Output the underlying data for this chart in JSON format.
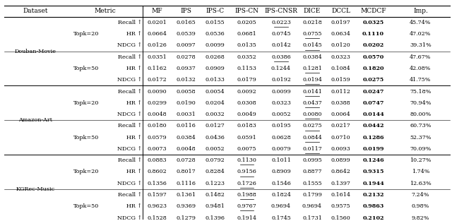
{
  "rows": [
    [
      "Douban-Movie",
      "Topk=20",
      "Recall ↑",
      "0.0201",
      "0.0165",
      "0.0155",
      "0.0205",
      "0.0223",
      "0.0218",
      "0.0197",
      "0.0325",
      "45.74%"
    ],
    [
      "",
      "Topk=20",
      "HR ↑",
      "0.0664",
      "0.0539",
      "0.0536",
      "0.0681",
      "0.0745",
      "0.0755",
      "0.0634",
      "0.1110",
      "47.02%"
    ],
    [
      "",
      "Topk=20",
      "NDCG ↑",
      "0.0126",
      "0.0097",
      "0.0099",
      "0.0135",
      "0.0142",
      "0.0145",
      "0.0120",
      "0.0202",
      "39.31%"
    ],
    [
      "",
      "Topk=50",
      "Recall ↑",
      "0.0351",
      "0.0278",
      "0.0268",
      "0.0352",
      "0.0386",
      "0.0384",
      "0.0323",
      "0.0570",
      "47.67%"
    ],
    [
      "",
      "Topk=50",
      "HR ↑",
      "0.1162",
      "0.0937",
      "0.0909",
      "0.1153",
      "0.1244",
      "0.1281",
      "0.1084",
      "0.1820",
      "42.08%"
    ],
    [
      "",
      "Topk=50",
      "NDCG ↑",
      "0.0172",
      "0.0132",
      "0.0133",
      "0.0179",
      "0.0192",
      "0.0194",
      "0.0159",
      "0.0275",
      "41.75%"
    ],
    [
      "Amazon-Art",
      "Topk=20",
      "Recall ↑",
      "0.0090",
      "0.0058",
      "0.0054",
      "0.0092",
      "0.0099",
      "0.0141",
      "0.0112",
      "0.0247",
      "75.18%"
    ],
    [
      "",
      "Topk=20",
      "HR ↑",
      "0.0299",
      "0.0190",
      "0.0204",
      "0.0308",
      "0.0323",
      "0.0437",
      "0.0388",
      "0.0747",
      "70.94%"
    ],
    [
      "",
      "Topk=20",
      "NDCG ↑",
      "0.0048",
      "0.0031",
      "0.0032",
      "0.0049",
      "0.0052",
      "0.0080",
      "0.0064",
      "0.0144",
      "80.00%"
    ],
    [
      "",
      "Topk=50",
      "Recall ↑",
      "0.0180",
      "0.0116",
      "0.0127",
      "0.0183",
      "0.0195",
      "0.0275",
      "0.0217",
      "0.0442",
      "60.73%"
    ],
    [
      "",
      "Topk=50",
      "HR ↑",
      "0.0579",
      "0.0384",
      "0.0436",
      "0.0591",
      "0.0628",
      "0.0844",
      "0.0710",
      "0.1286",
      "52.37%"
    ],
    [
      "",
      "Topk=50",
      "NDCG ↑",
      "0.0073",
      "0.0048",
      "0.0052",
      "0.0075",
      "0.0079",
      "0.0117",
      "0.0093",
      "0.0199",
      "70.09%"
    ],
    [
      "KGRec-Music",
      "Topk=20",
      "Recall ↑",
      "0.0883",
      "0.0728",
      "0.0792",
      "0.1130",
      "0.1011",
      "0.0995",
      "0.0899",
      "0.1246",
      "10.27%"
    ],
    [
      "",
      "Topk=20",
      "HR ↑",
      "0.8602",
      "0.8017",
      "0.8284",
      "0.9156",
      "0.8909",
      "0.8877",
      "0.8642",
      "0.9315",
      "1.74%"
    ],
    [
      "",
      "Topk=20",
      "NDCG ↑",
      "0.1356",
      "0.1116",
      "0.1223",
      "0.1726",
      "0.1546",
      "0.1555",
      "0.1397",
      "0.1944",
      "12.63%"
    ],
    [
      "",
      "Topk=50",
      "Recall ↑",
      "0.1597",
      "0.1361",
      "0.1482",
      "0.1988",
      "0.1824",
      "0.1799",
      "0.1614",
      "0.2132",
      "7.24%"
    ],
    [
      "",
      "Topk=50",
      "HR ↑",
      "0.9623",
      "0.9369",
      "0.9481",
      "0.9767",
      "0.9694",
      "0.9694",
      "0.9575",
      "0.9863",
      "0.98%"
    ],
    [
      "",
      "Topk=50",
      "NDCG ↑",
      "0.1528",
      "0.1279",
      "0.1396",
      "0.1914",
      "0.1745",
      "0.1731",
      "0.1560",
      "0.2102",
      "9.82%"
    ]
  ],
  "col_headers": [
    "Dataset",
    "Metric",
    "MF",
    "IPS",
    "IPS-C",
    "IPS-CN",
    "IPS-CNSR",
    "DICE",
    "DCCL",
    "MCDCF",
    "Imp."
  ],
  "underline_cells": [
    [
      0,
      4
    ],
    [
      1,
      5
    ],
    [
      2,
      5
    ],
    [
      3,
      4
    ],
    [
      4,
      5
    ],
    [
      5,
      5
    ],
    [
      6,
      5
    ],
    [
      7,
      5
    ],
    [
      8,
      5
    ],
    [
      9,
      5
    ],
    [
      10,
      5
    ],
    [
      11,
      5
    ],
    [
      12,
      3
    ],
    [
      13,
      3
    ],
    [
      14,
      3
    ],
    [
      15,
      3
    ],
    [
      16,
      3
    ],
    [
      17,
      3
    ]
  ],
  "dataset_groups": [
    {
      "name": "Douban-Movie",
      "start": 0,
      "end": 5
    },
    {
      "name": "Amazon-Art",
      "start": 6,
      "end": 11
    },
    {
      "name": "KGRec-Music",
      "start": 12,
      "end": 17
    }
  ],
  "topk_groups": [
    {
      "name": "Topk=20",
      "start": 0,
      "end": 2
    },
    {
      "name": "Topk=50",
      "start": 3,
      "end": 5
    },
    {
      "name": "Topk=20",
      "start": 6,
      "end": 8
    },
    {
      "name": "Topk=50",
      "start": 9,
      "end": 11
    },
    {
      "name": "Topk=20",
      "start": 12,
      "end": 14
    },
    {
      "name": "Topk=50",
      "start": 15,
      "end": 17
    }
  ],
  "major_sep_after_rows": [
    5,
    11
  ],
  "minor_sep_after_rows": [
    2,
    8,
    14
  ]
}
